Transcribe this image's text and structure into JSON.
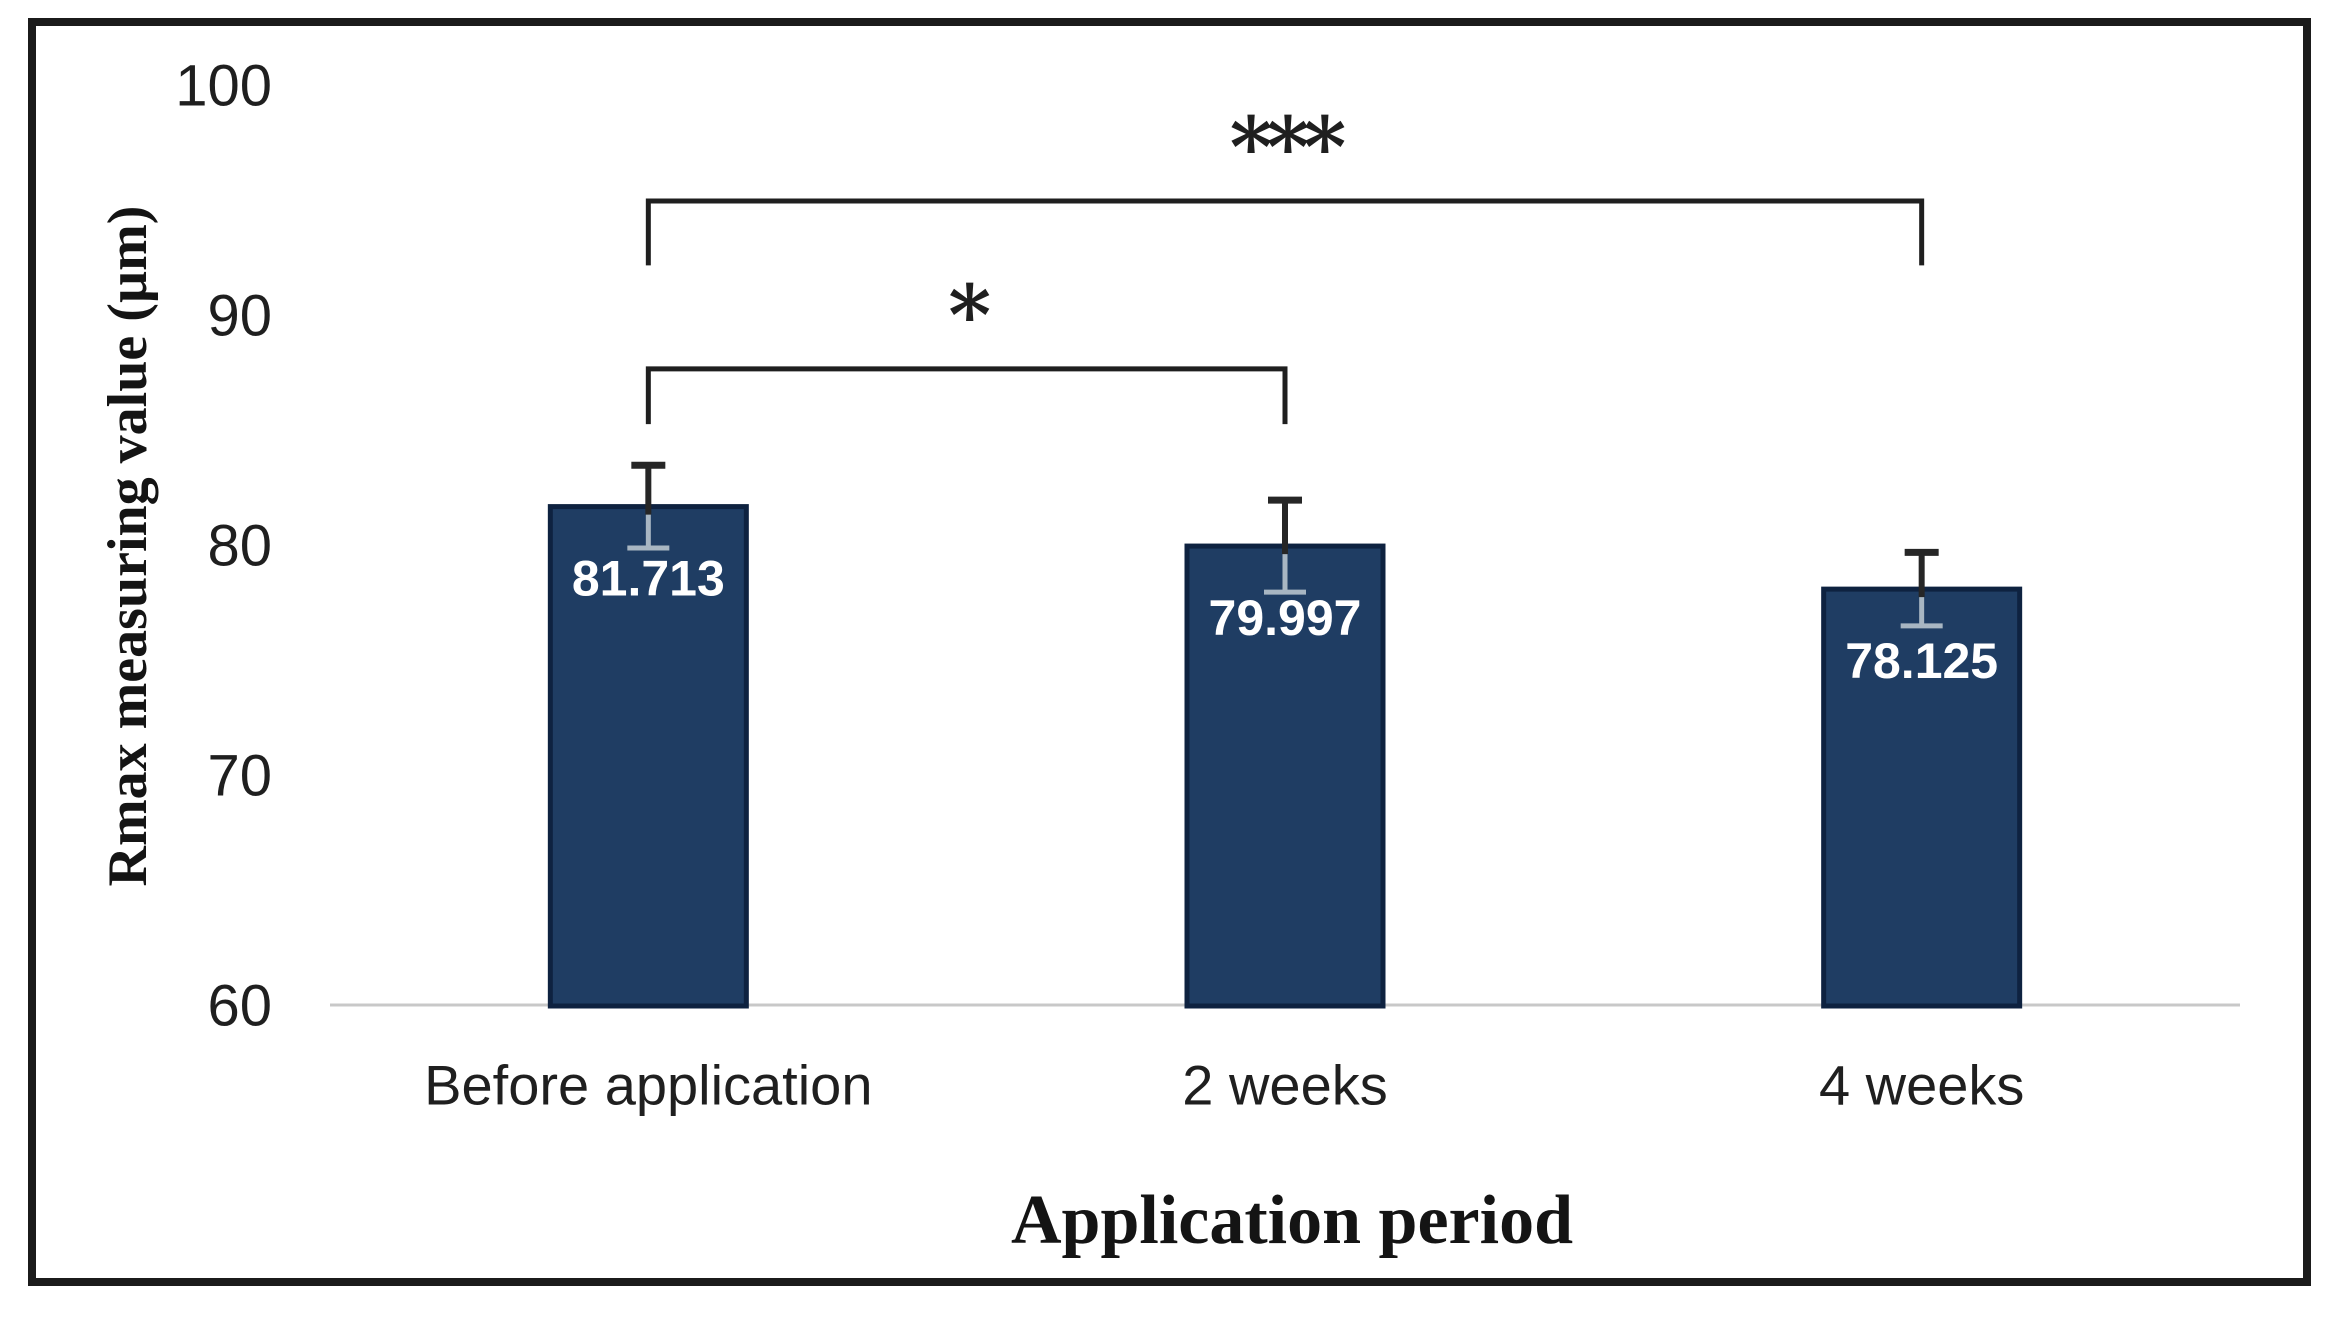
{
  "figure": {
    "background_color": "#ffffff",
    "border_color": "#1b1b1b",
    "text_color": "#1f1f1f"
  },
  "chart_data": {
    "type": "bar",
    "title": "",
    "categories": [
      "Before application",
      "2 weeks",
      "4 weeks"
    ],
    "values": [
      81.713,
      79.997,
      78.125
    ],
    "value_labels": [
      "81.713",
      "79.997",
      "78.125"
    ],
    "errors": [
      1.8,
      2.0,
      1.6
    ],
    "xlabel": "Application period",
    "ylabel": "Rmax measuring value (µm)",
    "ylim": [
      60,
      100
    ],
    "yticks": [
      100,
      90,
      80,
      70,
      60
    ],
    "ytick_labels": [
      "100",
      "90",
      "80",
      "70",
      "60"
    ],
    "grid": false,
    "legend_position": "none",
    "bar_color": "#1f3d63",
    "bar_border_color": "#0e2240",
    "error_bar_color": "#262626",
    "error_bar_inner_color": "#a8b6c2",
    "axis_line_color": "#c8c8c8",
    "value_label_color": "#ffffff",
    "annotations": [
      {
        "type": "significance-bracket",
        "from_index": 0,
        "to_index": 1,
        "label": "*",
        "y_value": 87.7,
        "drop_value": 2.4
      },
      {
        "type": "significance-bracket",
        "from_index": 0,
        "to_index": 2,
        "label": "***",
        "y_value": 95.0,
        "drop_value": 2.8
      }
    ]
  }
}
